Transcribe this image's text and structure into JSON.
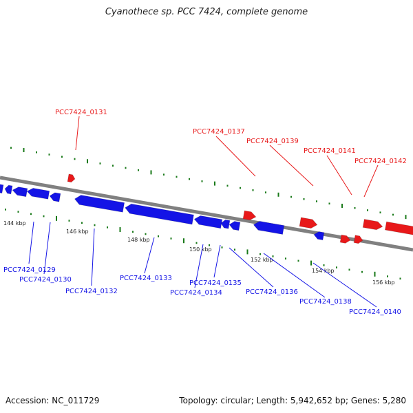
{
  "title": "Cyanothece sp. PCC 7424, complete genome",
  "footer": {
    "accession": "Accession: NC_011729",
    "summary": "Topology: circular; Length: 5,942,652 bp; Genes: 5,280"
  },
  "colors": {
    "forward": "#e8191a",
    "reverse": "#1414e6",
    "backbone": "#808080",
    "ticks": "#1a7a1a"
  },
  "scale": {
    "ticks": [
      {
        "label": "144 kbp"
      },
      {
        "label": "146 kbp"
      },
      {
        "label": "148 kbp"
      },
      {
        "label": "150 kbp"
      },
      {
        "label": "152 kbp"
      },
      {
        "label": "154 kbp"
      },
      {
        "label": "156 kbp"
      }
    ]
  },
  "genes": {
    "forward": [
      {
        "label": "PCC7424_0131"
      },
      {
        "label": "PCC7424_0137"
      },
      {
        "label": "PCC7424_0139"
      },
      {
        "label": "PCC7424_0141"
      },
      {
        "label": "PCC7424_0142"
      }
    ],
    "reverse": [
      {
        "label": "PCC7424_0129"
      },
      {
        "label": "PCC7424_0130"
      },
      {
        "label": "PCC7424_0132"
      },
      {
        "label": "PCC7424_0133"
      },
      {
        "label": "PCC7424_0134"
      },
      {
        "label": "PCC7424_0135"
      },
      {
        "label": "PCC7424_0136"
      },
      {
        "label": "PCC7424_0138"
      },
      {
        "label": "PCC7424_0140"
      }
    ]
  }
}
